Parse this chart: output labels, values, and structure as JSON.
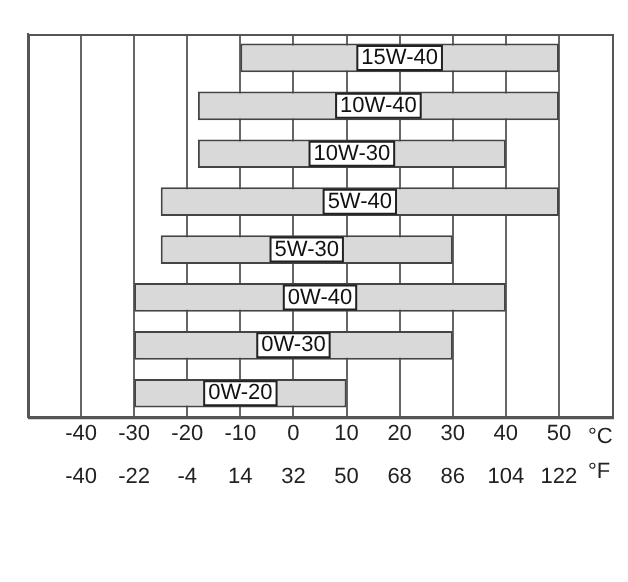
{
  "chart_data": {
    "type": "bar",
    "orientation": "horizontal",
    "categories": [
      "15W-40",
      "10W-40",
      "10W-30",
      "5W-40",
      "5W-30",
      "0W-40",
      "0W-30",
      "0W-20"
    ],
    "base": [
      -10,
      -18,
      -18,
      -25,
      -25,
      -30,
      -30,
      -30
    ],
    "values": [
      60,
      68,
      58,
      75,
      55,
      70,
      60,
      40
    ],
    "color": "#d9d9d9",
    "xlim": [
      -50,
      60
    ],
    "xticks": [
      -40,
      -30,
      -20,
      -10,
      0,
      10,
      20,
      30,
      40,
      50
    ],
    "x2lim": [
      -58,
      140
    ],
    "x2ticks": [
      -40,
      -22,
      -4,
      14,
      32,
      50,
      68,
      86,
      104,
      122
    ],
    "xlabel": "°C",
    "x2label": "°F",
    "grid": "x",
    "tick_labels": "x",
    "legend": false
  }
}
